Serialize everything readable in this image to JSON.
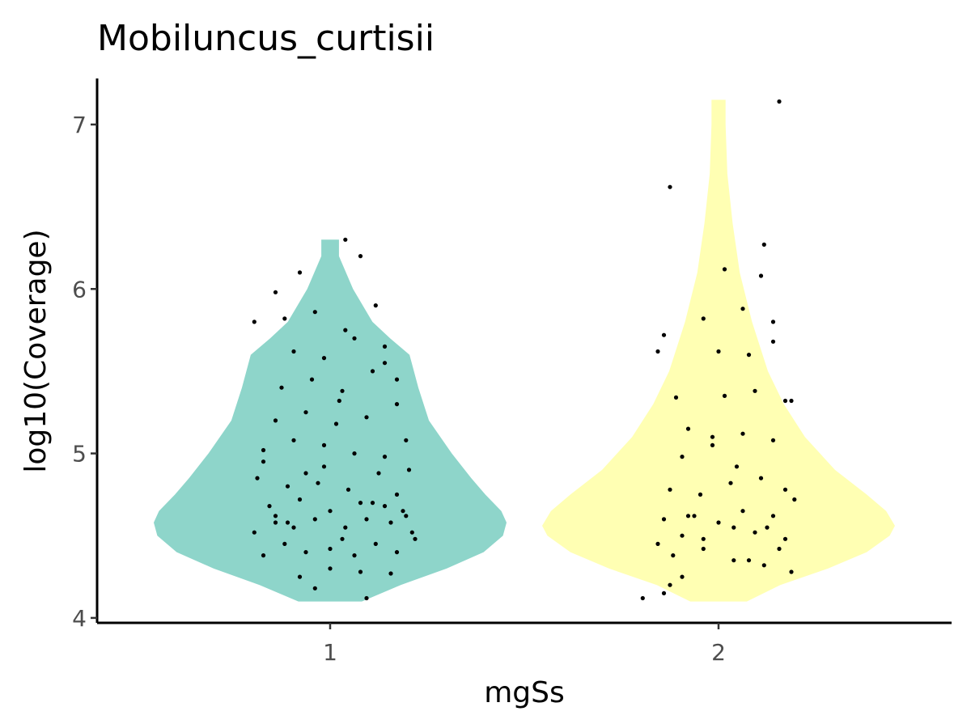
{
  "chart_data": {
    "type": "violin",
    "title": "Mobiluncus_curtisii",
    "xlabel": "mgSs",
    "ylabel": "log10(Coverage)",
    "ylim": [
      3.97,
      7.28
    ],
    "yticks": [
      4,
      5,
      6,
      7
    ],
    "categories": [
      "1",
      "2"
    ],
    "grid": false,
    "legend": "none",
    "series": [
      {
        "category": "1",
        "color": "#8ED5CA",
        "min": 4.1,
        "max": 6.3,
        "density": [
          [
            4.1,
            0.18
          ],
          [
            4.2,
            0.4
          ],
          [
            4.3,
            0.66
          ],
          [
            4.4,
            0.87
          ],
          [
            4.5,
            0.98
          ],
          [
            4.58,
            1.0
          ],
          [
            4.65,
            0.97
          ],
          [
            4.75,
            0.88
          ],
          [
            4.85,
            0.8
          ],
          [
            5.0,
            0.69
          ],
          [
            5.2,
            0.56
          ],
          [
            5.4,
            0.5
          ],
          [
            5.6,
            0.45
          ],
          [
            5.7,
            0.34
          ],
          [
            5.8,
            0.24
          ],
          [
            6.0,
            0.13
          ],
          [
            6.2,
            0.05
          ],
          [
            6.3,
            0.05
          ]
        ],
        "points": [
          [
            -0.25,
            4.52
          ],
          [
            -0.18,
            4.58
          ],
          [
            -0.12,
            4.55
          ],
          [
            -0.05,
            4.6
          ],
          [
            0.05,
            4.55
          ],
          [
            0.12,
            4.6
          ],
          [
            0.2,
            4.58
          ],
          [
            0.27,
            4.52
          ],
          [
            -0.22,
            4.38
          ],
          [
            -0.15,
            4.45
          ],
          [
            -0.08,
            4.4
          ],
          [
            0.0,
            4.42
          ],
          [
            0.08,
            4.38
          ],
          [
            0.15,
            4.45
          ],
          [
            0.22,
            4.4
          ],
          [
            0.28,
            4.48
          ],
          [
            -0.2,
            4.68
          ],
          [
            -0.1,
            4.72
          ],
          [
            0.0,
            4.65
          ],
          [
            0.1,
            4.7
          ],
          [
            0.18,
            4.68
          ],
          [
            0.25,
            4.62
          ],
          [
            -0.24,
            4.85
          ],
          [
            -0.14,
            4.8
          ],
          [
            -0.04,
            4.82
          ],
          [
            0.06,
            4.78
          ],
          [
            0.16,
            4.88
          ],
          [
            0.26,
            4.9
          ],
          [
            -0.22,
            5.02
          ],
          [
            -0.12,
            5.08
          ],
          [
            -0.02,
            5.05
          ],
          [
            0.08,
            5.0
          ],
          [
            0.18,
            4.98
          ],
          [
            0.25,
            5.08
          ],
          [
            -0.18,
            5.2
          ],
          [
            -0.08,
            5.25
          ],
          [
            0.02,
            5.18
          ],
          [
            0.12,
            5.22
          ],
          [
            0.22,
            5.3
          ],
          [
            -0.16,
            5.4
          ],
          [
            -0.06,
            5.45
          ],
          [
            0.04,
            5.38
          ],
          [
            0.14,
            5.5
          ],
          [
            0.22,
            5.45
          ],
          [
            -0.12,
            5.62
          ],
          [
            -0.02,
            5.58
          ],
          [
            0.08,
            5.7
          ],
          [
            0.18,
            5.65
          ],
          [
            -0.15,
            5.82
          ],
          [
            -0.05,
            5.86
          ],
          [
            0.05,
            5.75
          ],
          [
            0.15,
            5.9
          ],
          [
            -0.18,
            5.98
          ],
          [
            -0.1,
            6.1
          ],
          [
            0.05,
            6.3
          ],
          [
            0.1,
            6.2
          ],
          [
            -0.1,
            4.25
          ],
          [
            0.0,
            4.3
          ],
          [
            0.1,
            4.28
          ],
          [
            0.2,
            4.27
          ],
          [
            -0.05,
            4.18
          ],
          [
            0.12,
            4.12
          ],
          [
            -0.22,
            4.95
          ],
          [
            -0.02,
            4.92
          ],
          [
            0.14,
            4.7
          ],
          [
            -0.18,
            4.62
          ],
          [
            0.04,
            4.48
          ],
          [
            0.22,
            4.75
          ],
          [
            -0.25,
            5.8
          ],
          [
            -0.08,
            4.88
          ],
          [
            0.18,
            5.55
          ],
          [
            -0.14,
            4.58
          ],
          [
            0.24,
            4.65
          ],
          [
            0.03,
            5.32
          ]
        ]
      },
      {
        "category": "2",
        "color": "#FFFFB3",
        "min": 4.1,
        "max": 7.15,
        "density": [
          [
            4.1,
            0.16
          ],
          [
            4.2,
            0.35
          ],
          [
            4.3,
            0.62
          ],
          [
            4.4,
            0.84
          ],
          [
            4.5,
            0.97
          ],
          [
            4.56,
            1.0
          ],
          [
            4.65,
            0.95
          ],
          [
            4.75,
            0.84
          ],
          [
            4.9,
            0.66
          ],
          [
            5.1,
            0.49
          ],
          [
            5.3,
            0.37
          ],
          [
            5.5,
            0.28
          ],
          [
            5.8,
            0.19
          ],
          [
            6.1,
            0.12
          ],
          [
            6.4,
            0.08
          ],
          [
            6.7,
            0.05
          ],
          [
            7.0,
            0.04
          ],
          [
            7.15,
            0.04
          ]
        ],
        "points": [
          [
            -0.2,
            4.45
          ],
          [
            -0.12,
            4.5
          ],
          [
            -0.05,
            4.48
          ],
          [
            0.05,
            4.55
          ],
          [
            0.12,
            4.52
          ],
          [
            0.22,
            4.48
          ],
          [
            -0.18,
            4.6
          ],
          [
            -0.1,
            4.62
          ],
          [
            0.0,
            4.58
          ],
          [
            0.08,
            4.65
          ],
          [
            0.18,
            4.62
          ],
          [
            0.25,
            4.72
          ],
          [
            -0.15,
            4.38
          ],
          [
            -0.05,
            4.42
          ],
          [
            0.05,
            4.35
          ],
          [
            0.15,
            4.32
          ],
          [
            0.24,
            4.28
          ],
          [
            -0.16,
            4.78
          ],
          [
            -0.06,
            4.75
          ],
          [
            0.04,
            4.82
          ],
          [
            0.14,
            4.85
          ],
          [
            0.22,
            4.78
          ],
          [
            -0.12,
            4.98
          ],
          [
            -0.02,
            5.05
          ],
          [
            0.08,
            5.12
          ],
          [
            0.18,
            5.08
          ],
          [
            -0.1,
            5.15
          ],
          [
            0.02,
            5.35
          ],
          [
            0.12,
            5.38
          ],
          [
            0.22,
            5.32
          ],
          [
            -0.2,
            5.62
          ],
          [
            0.0,
            5.62
          ],
          [
            0.1,
            5.6
          ],
          [
            0.18,
            5.68
          ],
          [
            -0.18,
            5.72
          ],
          [
            -0.05,
            5.82
          ],
          [
            0.08,
            5.88
          ],
          [
            0.18,
            5.8
          ],
          [
            0.14,
            6.08
          ],
          [
            0.02,
            6.12
          ],
          [
            0.15,
            6.27
          ],
          [
            -0.16,
            6.62
          ],
          [
            0.2,
            7.14
          ],
          [
            -0.25,
            4.12
          ],
          [
            -0.18,
            4.15
          ],
          [
            -0.16,
            4.2
          ],
          [
            -0.12,
            4.25
          ],
          [
            0.1,
            4.35
          ],
          [
            0.2,
            4.42
          ],
          [
            -0.08,
            4.62
          ],
          [
            0.06,
            4.92
          ],
          [
            0.16,
            4.55
          ],
          [
            -0.02,
            5.1
          ],
          [
            0.24,
            5.32
          ],
          [
            -0.14,
            5.34
          ]
        ]
      }
    ]
  }
}
